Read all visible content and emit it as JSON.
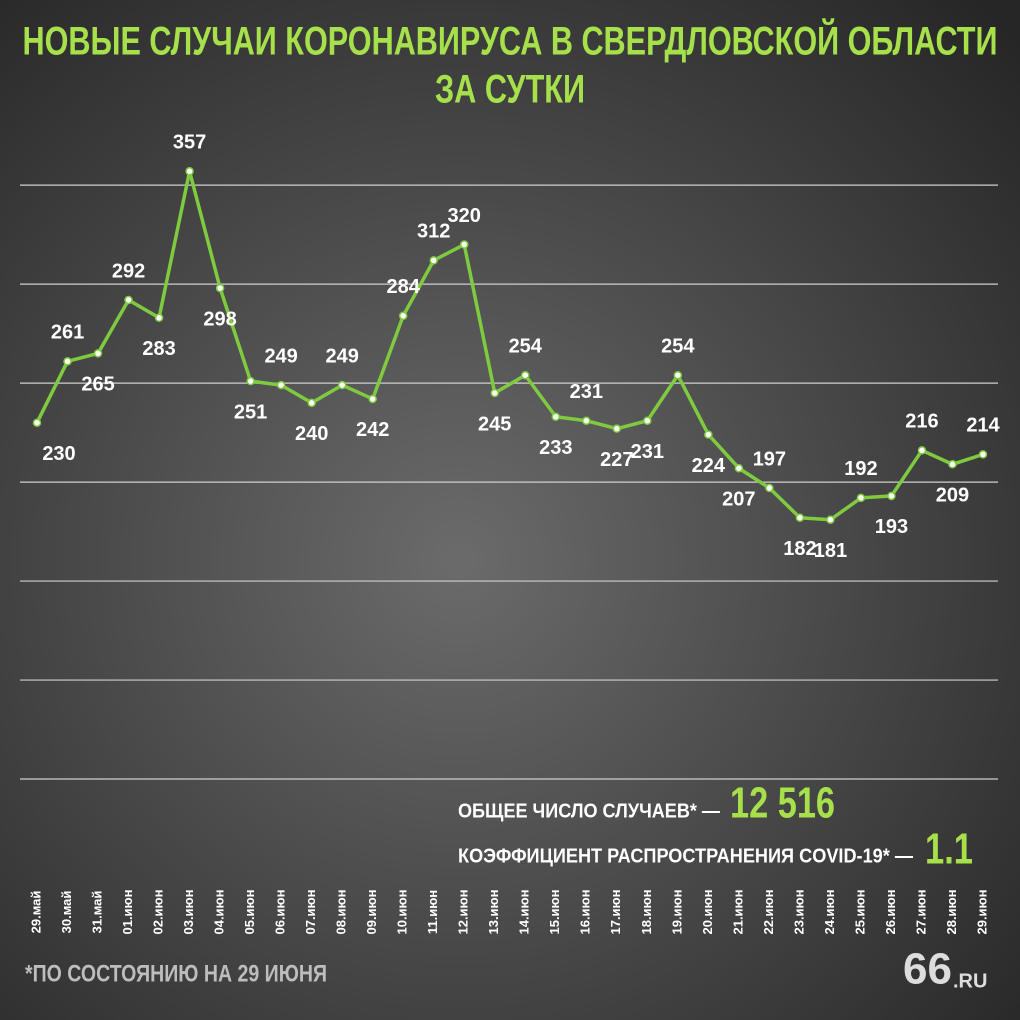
{
  "chart_data": {
    "type": "line",
    "title": [
      "НОВЫЕ СЛУЧАИ КОРОНАВИРУСА В СВЕРДЛОВСКОЙ ОБЛАСТИ",
      "ЗА СУТКИ"
    ],
    "categories": [
      "29.май",
      "30.май",
      "31.май",
      "01.июн",
      "02.июн",
      "03.июн",
      "04.июн",
      "05.июн",
      "06.июн",
      "07.июн",
      "08.июн",
      "09.июн",
      "10.июн",
      "11.июн",
      "12.июн",
      "13.июн",
      "14.июн",
      "15.июн",
      "16.июн",
      "17.июн",
      "18.июн",
      "19.июн",
      "20.июн",
      "21.июн",
      "22.июн",
      "23.июн",
      "24.июн",
      "25.июн",
      "26.июн",
      "27.июн",
      "28.июн",
      "29.июн"
    ],
    "series": [
      {
        "color": "#7fcb3f",
        "values": [
          230,
          261,
          265,
          292,
          283,
          357,
          298,
          251,
          249,
          240,
          249,
          242,
          284,
          312,
          320,
          245,
          254,
          233,
          231,
          227,
          231,
          254,
          224,
          207,
          197,
          182,
          181,
          192,
          193,
          216,
          209,
          214
        ]
      }
    ],
    "ylim": [
      0,
      440
    ],
    "yticks": [
      50,
      100,
      150,
      200,
      250,
      300,
      350
    ],
    "grid": true,
    "annotations": {
      "total_label": "ОБЩЕЕ ЧИСЛО СЛУЧАЕВ* —",
      "total_value": "12 516",
      "rate_label": "КОЭФФИЦИЕНТ РАСПРОСТРАНЕНИЯ COVID-19* —",
      "rate_value": "1.1",
      "footnote": "*ПО СОСТОЯНИЮ НА 29 ИЮНЯ",
      "logo": [
        "66",
        ".RU"
      ]
    }
  }
}
